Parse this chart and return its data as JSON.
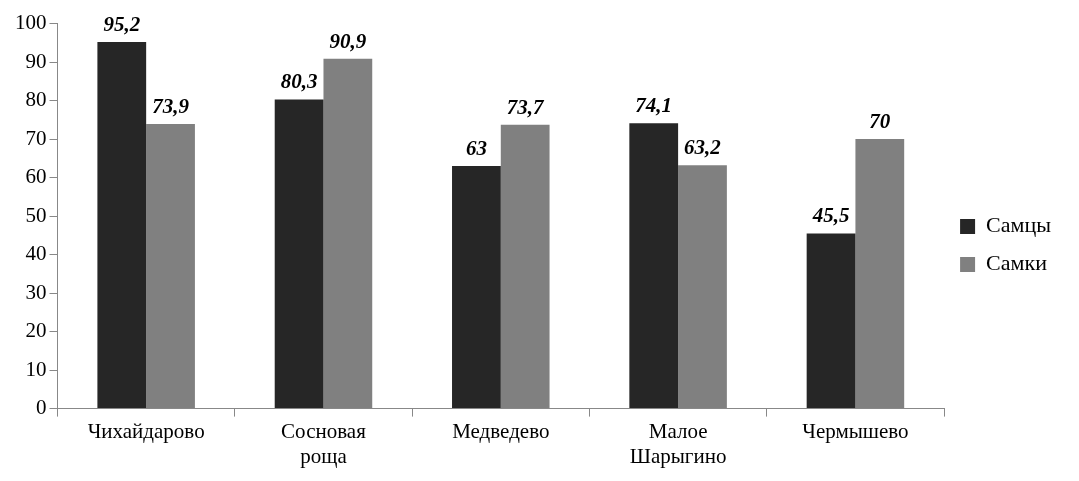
{
  "chart_data": {
    "type": "bar",
    "categories": [
      "Чихайдарово",
      "Сосновая роща",
      "Медведево",
      "Малое Шарыгино",
      "Чермышево"
    ],
    "series": [
      {
        "name": "Самцы",
        "color": "#262626",
        "values": [
          95.2,
          80.3,
          63,
          74.1,
          45.5
        ],
        "value_labels": [
          "95,2",
          "80,3",
          "63",
          "74,1",
          "45,5"
        ]
      },
      {
        "name": "Самки",
        "color": "#808080",
        "values": [
          73.9,
          90.9,
          73.7,
          63.2,
          70
        ],
        "value_labels": [
          "73,9",
          "90,9",
          "73,7",
          "63,2",
          "70"
        ]
      }
    ],
    "ylim": [
      0,
      100
    ],
    "yticks": [
      0,
      10,
      20,
      30,
      40,
      50,
      60,
      70,
      80,
      90,
      100
    ],
    "legend": "right",
    "grid": false
  }
}
